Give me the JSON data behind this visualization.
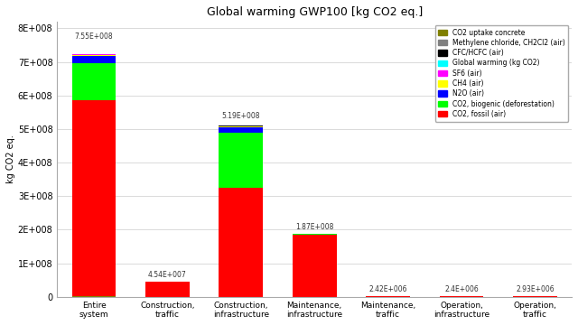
{
  "title": "Global warming GWP100 [kg CO2 eq.]",
  "ylabel": "kg CO2 eq.",
  "categories": [
    "Entire\nsystem",
    "Construction,\ntraffic",
    "Construction,\ninfrastructure",
    "Maintenance,\ninfrastructure",
    "Maintenance,\ntraffic",
    "Operation,\ninfrastructure",
    "Operation,\ntraffic"
  ],
  "totals": [
    "7.55E+008",
    "4.54E+007",
    "5.19E+008",
    "1.87E+008",
    "2.42E+006",
    "2.4E+006",
    "2.93E+006"
  ],
  "legend_labels": [
    "CO2 uptake concrete",
    "Methylene chloride, CH2Cl2 (air)",
    "CFC/HCFC (air)",
    "Global warming (kg CO2)",
    "SF6 (air)",
    "CH4 (air)",
    "N2O (air)",
    "CO2, biogenic (deforestation)",
    "CO2, fossil (air)"
  ],
  "legend_colors": [
    "#808000",
    "#808080",
    "#000000",
    "#00FFFF",
    "#FF00FF",
    "#FFFF00",
    "#0000FF",
    "#00FF00",
    "#FF0000"
  ],
  "stacks": {
    "CO2_fossil": [
      585000000.0,
      45400000.0,
      325000000.0,
      185000000.0,
      2420000.0,
      2400000.0,
      2930000.0
    ],
    "CO2_biogenic": [
      110000000.0,
      0,
      165000000.0,
      2000000.0,
      0,
      0,
      0
    ],
    "N2O": [
      22000000.0,
      0,
      15000000.0,
      0,
      0,
      0,
      0
    ],
    "CH4": [
      4000000.0,
      0,
      3000000.0,
      0,
      0,
      0,
      0
    ],
    "SF6": [
      1000000.0,
      0,
      500000.0,
      0,
      0,
      0,
      0
    ],
    "global_warming": [
      500000.0,
      0,
      300000.0,
      0,
      0,
      0,
      0
    ],
    "CFC": [
      1000000.0,
      0,
      500000.0,
      0,
      0,
      0,
      0
    ],
    "methylene": [
      500000.0,
      0,
      200000.0,
      0,
      0,
      0,
      0
    ],
    "CO2_uptake": [
      -3000000.0,
      0,
      0,
      0,
      0,
      0,
      0
    ]
  },
  "ylim": [
    0,
    820000000.0
  ],
  "yticks": [
    0,
    100000000.0,
    200000000.0,
    300000000.0,
    400000000.0,
    500000000.0,
    600000000.0,
    700000000.0,
    800000000.0
  ],
  "background_color": "#ffffff",
  "grid_color": "#cccccc"
}
